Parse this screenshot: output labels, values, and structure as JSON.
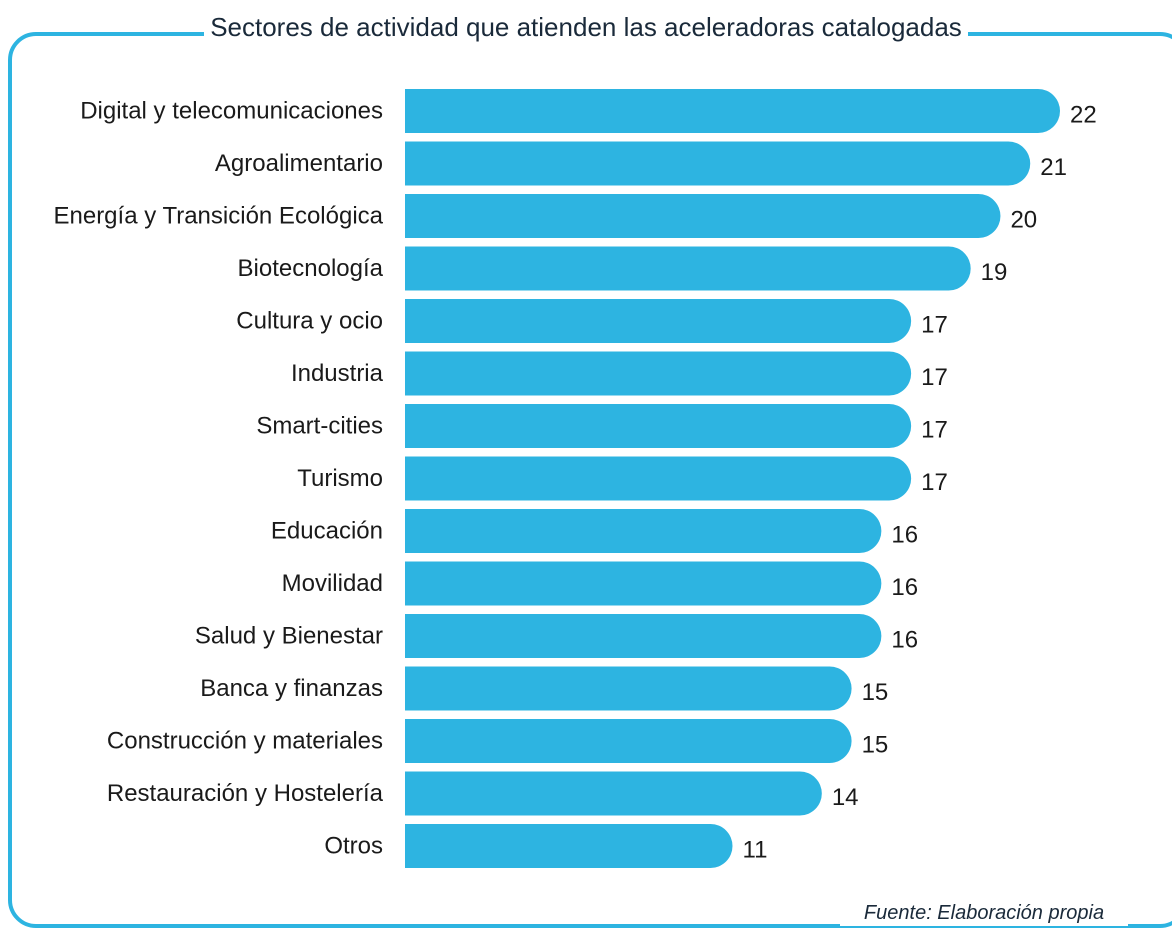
{
  "title": "Sectores de actividad que atienden las aceleradoras catalogadas",
  "source": "Fuente: Elaboración propia",
  "colors": {
    "bar": "#2db4e1",
    "frame": "#2db4e1",
    "text": "#1a1a1a"
  },
  "chart_data": {
    "type": "bar",
    "orientation": "horizontal",
    "title": "Sectores de actividad que atienden las aceleradoras catalogadas",
    "categories": [
      "Digital y telecomunicaciones",
      "Agroalimentario",
      "Energía y Transición Ecológica",
      "Biotecnología",
      "Cultura y ocio",
      "Industria",
      "Smart-cities",
      "Turismo",
      "Educación",
      "Movilidad",
      "Salud y Bienestar",
      "Banca y finanzas",
      "Construcción y materiales",
      "Restauración y Hostelería",
      "Otros"
    ],
    "values": [
      22,
      21,
      20,
      19,
      17,
      17,
      17,
      17,
      16,
      16,
      16,
      15,
      15,
      14,
      11
    ],
    "xlim": [
      0,
      22
    ],
    "grid": false,
    "legend": "none"
  }
}
